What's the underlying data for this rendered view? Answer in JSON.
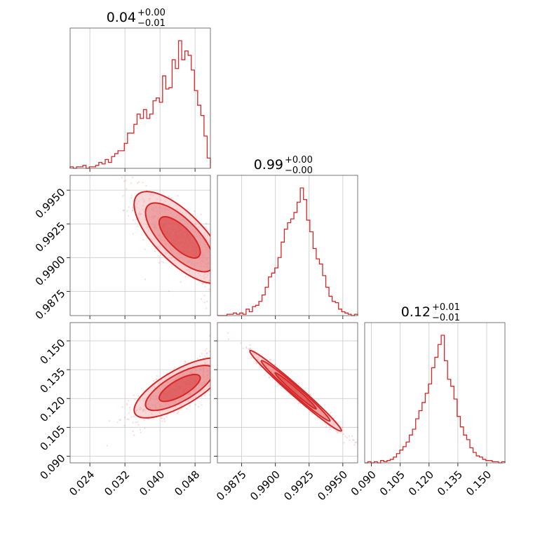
{
  "colors": {
    "accent": "#d62728",
    "grid": "#c8c8c8",
    "axis": "#000000",
    "fill_light": "#f4b8b9",
    "fill_mid": "#e57f81"
  },
  "chart_data": {
    "type": "corner",
    "grid": true,
    "parameters": [
      {
        "index": 0,
        "range": [
          0.0195,
          0.0515
        ],
        "ticks": [
          0.024,
          0.032,
          0.04,
          0.048
        ],
        "tick_labels": [
          "0.024",
          "0.032",
          "0.040",
          "0.048"
        ],
        "title_value": "0.04",
        "title_plus": "+0.00",
        "title_minus": "−0.01",
        "hist_bins": [
          1,
          0,
          1,
          1,
          2,
          0,
          1,
          1,
          2,
          4,
          3,
          6,
          4,
          8,
          10,
          12,
          12,
          17,
          24,
          24,
          30,
          37,
          34,
          40,
          34,
          37,
          46,
          48,
          45,
          63,
          54,
          55,
          74,
          68,
          87,
          74,
          80,
          77,
          67,
          53,
          43,
          36,
          22,
          7
        ]
      },
      {
        "index": 1,
        "range": [
          0.9857,
          0.9961
        ],
        "ticks": [
          0.9875,
          0.99,
          0.9925,
          0.995
        ],
        "tick_labels": [
          "0.9875",
          "0.9900",
          "0.9925",
          "0.9950"
        ],
        "title_value": "0.99",
        "title_plus": "+0.00",
        "title_minus": "−0.00",
        "hist_bins": [
          0,
          0,
          0,
          1,
          1,
          2,
          1,
          2,
          1,
          5,
          3,
          7,
          8,
          11,
          16,
          22,
          30,
          33,
          37,
          45,
          57,
          67,
          72,
          75,
          80,
          88,
          99,
          90,
          74,
          65,
          52,
          44,
          40,
          31,
          22,
          15,
          11,
          10,
          5,
          3,
          2,
          1,
          0,
          1
        ]
      },
      {
        "index": 2,
        "range": [
          0.0865,
          0.1595
        ],
        "ticks": [
          0.09,
          0.105,
          0.12,
          0.135,
          0.15
        ],
        "tick_labels": [
          "0.090",
          "0.105",
          "0.120",
          "0.135",
          "0.150"
        ],
        "title_value": "0.12",
        "title_plus": "+0.01",
        "title_minus": "−0.01",
        "hist_bins": [
          0,
          1,
          0,
          1,
          0,
          2,
          1,
          2,
          3,
          5,
          8,
          11,
          14,
          18,
          24,
          29,
          38,
          45,
          52,
          60,
          68,
          82,
          91,
          102,
          110,
          88,
          72,
          66,
          55,
          40,
          31,
          24,
          20,
          13,
          9,
          6,
          5,
          3,
          2,
          2,
          1,
          1,
          0,
          1
        ]
      }
    ],
    "pairs": [
      {
        "x_param": 0,
        "y_param": 1,
        "correlation": -0.72,
        "center": [
          0.0445,
          0.9915
        ],
        "sigma": [
          0.0052,
          0.0017
        ],
        "levels_sigma": [
          0.9,
          1.5,
          2.0
        ]
      },
      {
        "x_param": 0,
        "y_param": 2,
        "correlation": 0.74,
        "center": [
          0.0445,
          0.1255
        ],
        "sigma": [
          0.0052,
          0.0078
        ],
        "levels_sigma": [
          0.9,
          1.5,
          2.0
        ]
      },
      {
        "x_param": 1,
        "y_param": 2,
        "correlation": -0.985,
        "center": [
          0.9915,
          0.124
        ],
        "sigma": [
          0.0017,
          0.0105
        ],
        "levels_sigma": [
          0.9,
          1.5,
          2.0
        ]
      }
    ]
  }
}
